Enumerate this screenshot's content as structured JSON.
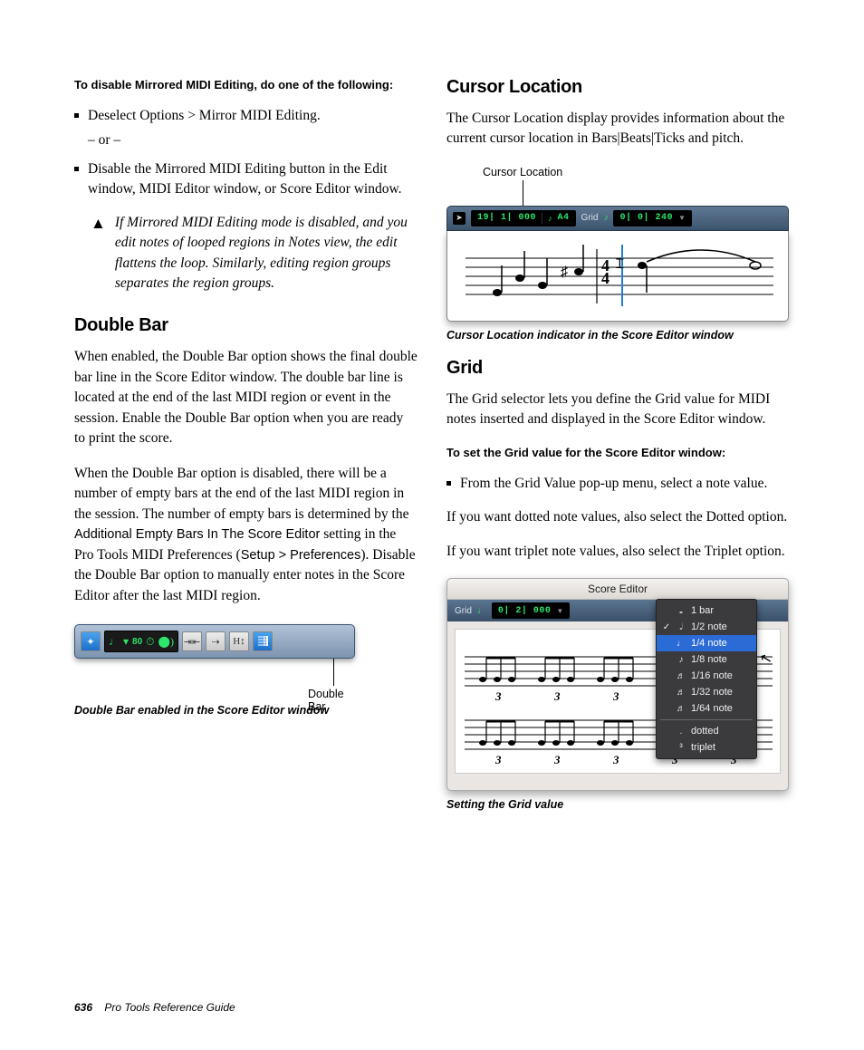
{
  "left": {
    "intro": "To disable Mirrored MIDI Editing, do one of the following:",
    "bullet1": "Deselect Options > Mirror MIDI Editing.",
    "or": "– or –",
    "bullet2": "Disable the Mirrored MIDI Editing button in the Edit window, MIDI Editor window, or Score Editor window.",
    "warn": "If Mirrored MIDI Editing mode is disabled, and you edit notes of looped regions in Notes view, the edit flattens the loop. Similarly, editing region groups separates the region groups.",
    "h_doublebar": "Double Bar",
    "db_p1": "When enabled, the Double Bar option shows the final double bar line in the Score Editor window. The double bar line is located at the end of the last MIDI region or event in the session. Enable the Double Bar option when you are ready to print the score.",
    "db_p2_a": "When the Double Bar option is disabled, there will be a number of empty bars at the end of the last MIDI region in the session. The number of empty bars is determined by the ",
    "db_p2_sans": "Additional Empty Bars In The Score Editor",
    "db_p2_b": " setting in the Pro Tools MIDI Preferences (",
    "db_p2_sans2": "Setup > Preferences",
    "db_p2_c": "). Disable the Double Bar option to manually enter notes in the Score Editor after the last MIDI region.",
    "db_toolbar": {
      "tempo": "80"
    },
    "db_callout": "Double Bar",
    "db_caption": "Double Bar enabled in the Score Editor window"
  },
  "right": {
    "h_cursor": "Cursor Location",
    "cl_p1": "The Cursor Location display provides information about the current cursor location in Bars|Beats|Ticks and pitch.",
    "cl_callout": "Cursor Location",
    "cl_toolbar": {
      "pos": "19| 1| 000",
      "pitch": "A4",
      "grid_label": "Grid",
      "grid_val": "0| 0| 240"
    },
    "cl_caption": "Cursor Location indicator in the Score Editor window",
    "h_grid": "Grid",
    "gr_p1": "The Grid selector lets you define the Grid value for MIDI notes inserted and displayed in the Score Editor window.",
    "gr_intro": "To set the Grid value for the Score Editor window:",
    "gr_bullet": "From the Grid Value pop-up menu, select a note value.",
    "gr_p2": "If you want dotted note values, also select the Dotted option.",
    "gr_p3": "If you want triplet note values, also select the Triplet option.",
    "grid_fig": {
      "title": "Score Editor",
      "grid_label": "Grid",
      "grid_val": "0| 2| 000",
      "menu": {
        "items": [
          {
            "icon": "𝅝",
            "label": "1 bar",
            "check": ""
          },
          {
            "icon": "𝅗𝅥",
            "label": "1/2 note",
            "check": "✓"
          },
          {
            "icon": "♩",
            "label": "1/4 note",
            "check": ""
          },
          {
            "icon": "♪",
            "label": "1/8 note",
            "check": ""
          },
          {
            "icon": "♬",
            "label": "1/16 note",
            "check": ""
          },
          {
            "icon": "♬",
            "label": "1/32 note",
            "check": ""
          },
          {
            "icon": "♬",
            "label": "1/64 note",
            "check": ""
          }
        ],
        "extra": [
          {
            "icon": ".",
            "label": "dotted"
          },
          {
            "icon": "³",
            "label": "triplet"
          }
        ],
        "selected_index": 2
      },
      "triplet_marker": "3"
    },
    "gr_caption": "Setting the Grid value"
  },
  "footer": {
    "page": "636",
    "book": "Pro Tools Reference Guide"
  },
  "colors": {
    "toolbar_grad_top": "#b1c2d6",
    "toolbar_grad_bot": "#7d94b0",
    "dark_toolbar_top": "#5e7893",
    "dark_toolbar_bot": "#3d546e",
    "green": "#2ee66b",
    "menu_bg": "#3b3b3d",
    "menu_sel": "#2b6bd6",
    "cursor_blue": "#1e7fd6"
  }
}
